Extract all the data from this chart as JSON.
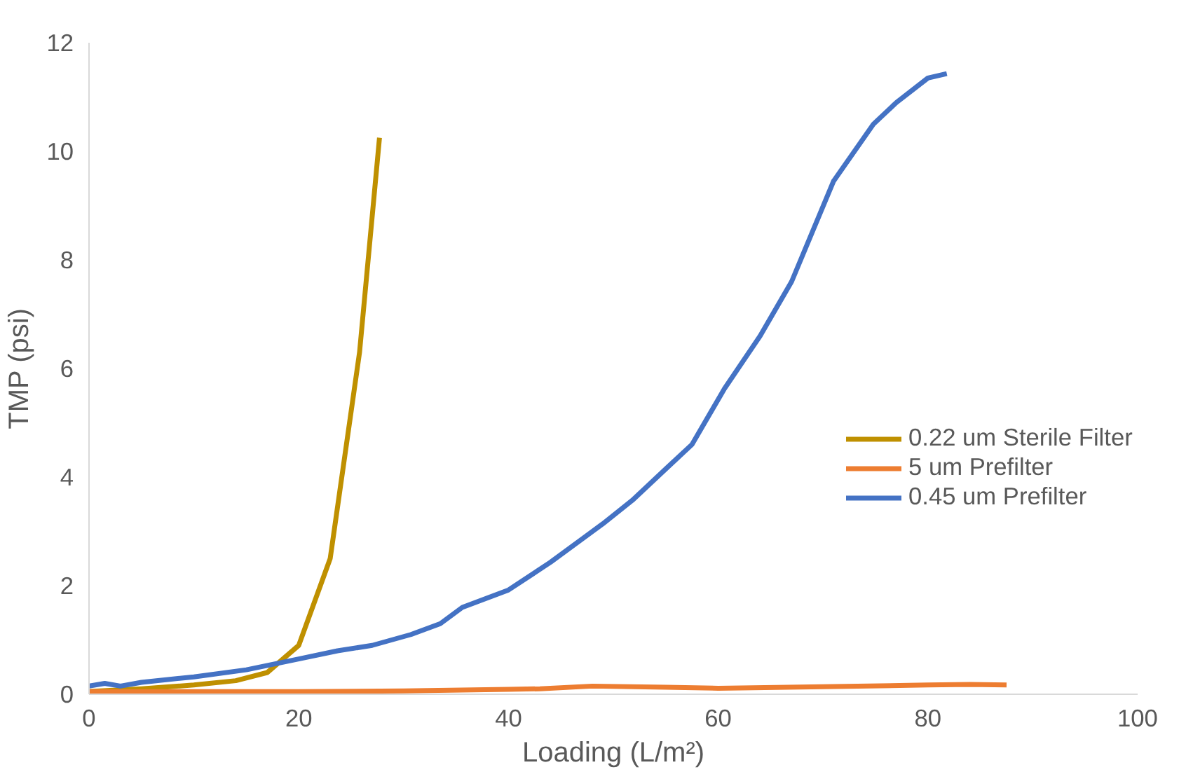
{
  "chart_data": {
    "type": "line",
    "xlabel": "Loading (L/m²)",
    "ylabel": "TMP (psi)",
    "xlim": [
      0,
      100
    ],
    "xticks": [
      0,
      20,
      40,
      60,
      80,
      100
    ],
    "ylim": [
      0,
      12
    ],
    "yticks": [
      0,
      2,
      4,
      6,
      8,
      10,
      12
    ],
    "grid": false,
    "legend": "right",
    "line_style": "solid",
    "marker": "none",
    "series": [
      {
        "name": "0.22 um Sterile Filter",
        "color": "#bf9000",
        "x": [
          0,
          5,
          10,
          14,
          17,
          20,
          23,
          25.8,
          27.7
        ],
        "values": [
          0.05,
          0.1,
          0.17,
          0.25,
          0.4,
          0.9,
          2.5,
          6.3,
          10.25
        ]
      },
      {
        "name": "5 um Prefilter",
        "color": "#ed7d31",
        "x": [
          0,
          10,
          20,
          30,
          40,
          43,
          48,
          55,
          60,
          70,
          80,
          84,
          87.5
        ],
        "values": [
          0.05,
          0.05,
          0.05,
          0.06,
          0.09,
          0.1,
          0.15,
          0.13,
          0.11,
          0.14,
          0.17,
          0.18,
          0.17
        ]
      },
      {
        "name": "0.45 um Prefilter",
        "color": "#4472c4",
        "x": [
          0,
          1.5,
          3,
          5,
          10,
          15,
          20,
          23.7,
          27,
          30.7,
          33.5,
          35.6,
          40,
          44,
          49,
          51.8,
          55,
          57.5,
          60.6,
          64,
          67,
          71,
          74.8,
          77,
          80,
          81.8
        ],
        "values": [
          0.15,
          0.2,
          0.15,
          0.22,
          0.32,
          0.45,
          0.65,
          0.8,
          0.9,
          1.1,
          1.3,
          1.6,
          1.92,
          2.43,
          3.14,
          3.57,
          4.15,
          4.6,
          5.63,
          6.6,
          7.6,
          9.45,
          10.5,
          10.9,
          11.35,
          11.43
        ]
      }
    ]
  }
}
